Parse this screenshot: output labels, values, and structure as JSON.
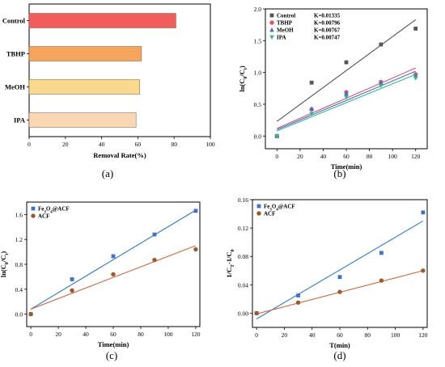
{
  "chart_data": [
    {
      "id": "a",
      "panel_label": "(a)",
      "type": "bar",
      "orientation": "horizontal",
      "categories": [
        "Control",
        "TBHP",
        "MeOH",
        "IPA"
      ],
      "values": [
        81,
        62,
        61,
        59
      ],
      "colors": [
        "#f25c5c",
        "#f5a55c",
        "#f8d98e",
        "#f9d6b4"
      ],
      "xlabel": "Removal Rate(%)",
      "ylabel": "",
      "xlim": [
        0,
        100
      ],
      "xticks": [
        "0",
        "20",
        "40",
        "60",
        "80",
        "100"
      ],
      "grid": false
    },
    {
      "id": "b",
      "panel_label": "(b)",
      "type": "scatter",
      "xlabel": "Time(min)",
      "ylabel": "ln(C0/Ct)",
      "ylabel_parts": {
        "pre": "ln(C",
        "sub1": "0",
        "mid": "/C",
        "sub2": "t",
        "post": ")"
      },
      "xlim": [
        -10,
        130
      ],
      "ylim": [
        -0.2,
        2.0
      ],
      "xticks": [
        "0",
        "20",
        "40",
        "60",
        "80",
        "100",
        "120"
      ],
      "yticks": [
        "0.0",
        "0.5",
        "1.0",
        "1.5",
        "2.0"
      ],
      "legend_position": "top-left",
      "grid": false,
      "x": [
        0,
        30,
        60,
        90,
        120
      ],
      "series": [
        {
          "name": "Control",
          "k_label": "K=0.01335",
          "marker": "square",
          "color": "#555555",
          "values": [
            0,
            0.84,
            1.16,
            1.44,
            1.69
          ],
          "fit": [
            0.23,
            1.83
          ]
        },
        {
          "name": "TBHP",
          "k_label": "K=0.00796",
          "marker": "circle",
          "color": "#e8506a",
          "values": [
            0,
            0.42,
            0.69,
            0.85,
            0.97
          ],
          "fit": [
            0.12,
            1.07
          ]
        },
        {
          "name": "MeOH",
          "k_label": "K=0.00767",
          "marker": "triangle-up",
          "color": "#3f6fd0",
          "values": [
            0,
            0.43,
            0.67,
            0.84,
            0.95
          ],
          "fit": [
            0.1,
            1.02
          ]
        },
        {
          "name": "IPA",
          "k_label": "K=0.00747",
          "marker": "triangle-down",
          "color": "#2dbb8d",
          "values": [
            0,
            0.35,
            0.61,
            0.79,
            0.91
          ],
          "fit": [
            0.08,
            0.97
          ]
        }
      ]
    },
    {
      "id": "c",
      "panel_label": "(c)",
      "type": "scatter",
      "xlabel": "Time(min)",
      "ylabel": "ln(C0/Ct)",
      "ylabel_parts": {
        "pre": "ln(C",
        "sub1": "0",
        "mid": "/C",
        "sub2": "t",
        "post": ")"
      },
      "xlim": [
        -3,
        123
      ],
      "ylim": [
        -0.2,
        1.8
      ],
      "xticks": [
        "0",
        "20",
        "40",
        "60",
        "80",
        "100",
        "120"
      ],
      "yticks": [
        "0.0",
        "0.4",
        "0.8",
        "1.2",
        "1.6"
      ],
      "legend_position": "top-left",
      "grid": false,
      "x": [
        0,
        30,
        60,
        90,
        120
      ],
      "series": [
        {
          "name": "Fe3O4@ACF",
          "name_parts": {
            "pre": "Fe",
            "sub1": "3",
            "mid": "O",
            "sub2": "4",
            "post": "@ACF"
          },
          "marker": "square",
          "color": "#3f6fd0",
          "line_color": "#2a7bd6",
          "values": [
            0,
            0.56,
            0.93,
            1.28,
            1.66
          ],
          "fit": [
            0.08,
            1.67
          ]
        },
        {
          "name": "ACF",
          "marker": "circle",
          "color": "#9b5a28",
          "line_color": "#d9623a",
          "values": [
            0,
            0.38,
            0.64,
            0.87,
            1.04
          ],
          "fit": [
            0.08,
            1.1
          ]
        }
      ]
    },
    {
      "id": "d",
      "panel_label": "(d)",
      "type": "scatter",
      "xlabel": "T(min)",
      "ylabel": "1/Ct-1/C0",
      "ylabel_parts": {
        "pre": "1/C",
        "sub1": "T",
        "mid": "-1/C",
        "sub2": "0",
        "post": ""
      },
      "xlim": [
        -3,
        123
      ],
      "ylim": [
        -0.02,
        0.16
      ],
      "xticks": [
        "0",
        "20",
        "40",
        "60",
        "80",
        "100",
        "120"
      ],
      "yticks": [
        "0.00",
        "0.04",
        "0.08",
        "0.12",
        "0.16"
      ],
      "legend_position": "top-left",
      "grid": false,
      "x": [
        0,
        30,
        60,
        90,
        120
      ],
      "series": [
        {
          "name": "Fe3O4@ACF",
          "name_parts": {
            "pre": "Fe",
            "sub1": "3",
            "mid": "O",
            "sub2": "4",
            "post": "@ACF"
          },
          "marker": "square",
          "color": "#3f6fd0",
          "line_color": "#2a7bd6",
          "values": [
            0,
            0.025,
            0.051,
            0.085,
            0.142
          ],
          "fit": [
            -0.008,
            0.13
          ]
        },
        {
          "name": "ACF",
          "marker": "circle",
          "color": "#9b5a28",
          "line_color": "#d9623a",
          "values": [
            0,
            0.015,
            0.03,
            0.046,
            0.06
          ],
          "fit": [
            -0.001,
            0.06
          ]
        }
      ]
    }
  ]
}
